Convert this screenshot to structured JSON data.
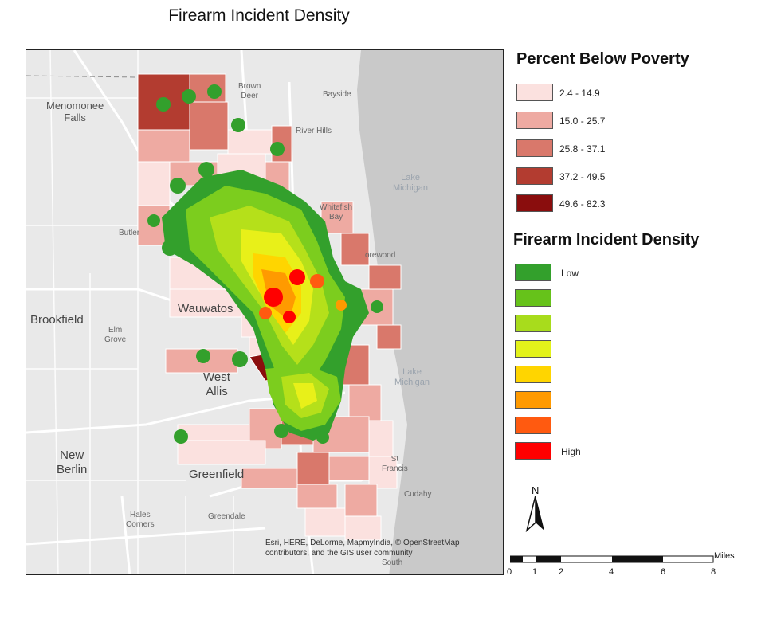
{
  "map": {
    "title": "Firearm Incident Density",
    "places": {
      "menomonee_falls": "Menomonee\nFalls",
      "brown_deer": "Brown\nDeer",
      "bayside": "Bayside",
      "river_hills": "River Hills",
      "lake_michigan_n": "Lake\nMichigan",
      "whitefish_bay": "Whitefish\nBay",
      "butler": "Butler",
      "shorewood": "orewood",
      "brookfield": "Brookfield",
      "elm_grove": "Elm\nGrove",
      "wauwatosa": "Wauwatos",
      "west_allis": "West\nAllis",
      "lake_michigan_s": "Lake\nMichigan",
      "new_berlin": "New\nBerlin",
      "greenfield": "Greenfield",
      "st_francis": "St\nFrancis",
      "cudahy": "Cudahy",
      "hales_corners": "Hales\nCorners",
      "greendale": "Greendale",
      "south": "South"
    },
    "attribution": "Esri, HERE, DeLorme, MapmyIndia, © OpenStreetMap contributors, and the GIS user community"
  },
  "legend": {
    "poverty": {
      "title": "Percent Below Poverty",
      "classes": [
        {
          "label": "2.4 - 14.9",
          "color": "#fbe1df"
        },
        {
          "label": "15.0 - 25.7",
          "color": "#eeaaa2"
        },
        {
          "label": "25.8 - 37.1",
          "color": "#d9786b"
        },
        {
          "label": "37.2 - 49.5",
          "color": "#b33c30"
        },
        {
          "label": "49.6 - 82.3",
          "color": "#8a0d0d"
        }
      ]
    },
    "density": {
      "title": "Firearm Incident Density",
      "classes": [
        {
          "label": "Low",
          "color": "#33a02c"
        },
        {
          "label": "",
          "color": "#66c21a"
        },
        {
          "label": "",
          "color": "#a8dc1c"
        },
        {
          "label": "",
          "color": "#e3f21a"
        },
        {
          "label": "",
          "color": "#ffd500"
        },
        {
          "label": "",
          "color": "#ff9a00"
        },
        {
          "label": "",
          "color": "#ff5a10"
        },
        {
          "label": "High",
          "color": "#ff0000"
        }
      ]
    }
  },
  "north_arrow": {
    "label": "N"
  },
  "scale": {
    "unit": "Miles",
    "ticks": [
      "0",
      "1",
      "2",
      "4",
      "6",
      "8"
    ]
  }
}
